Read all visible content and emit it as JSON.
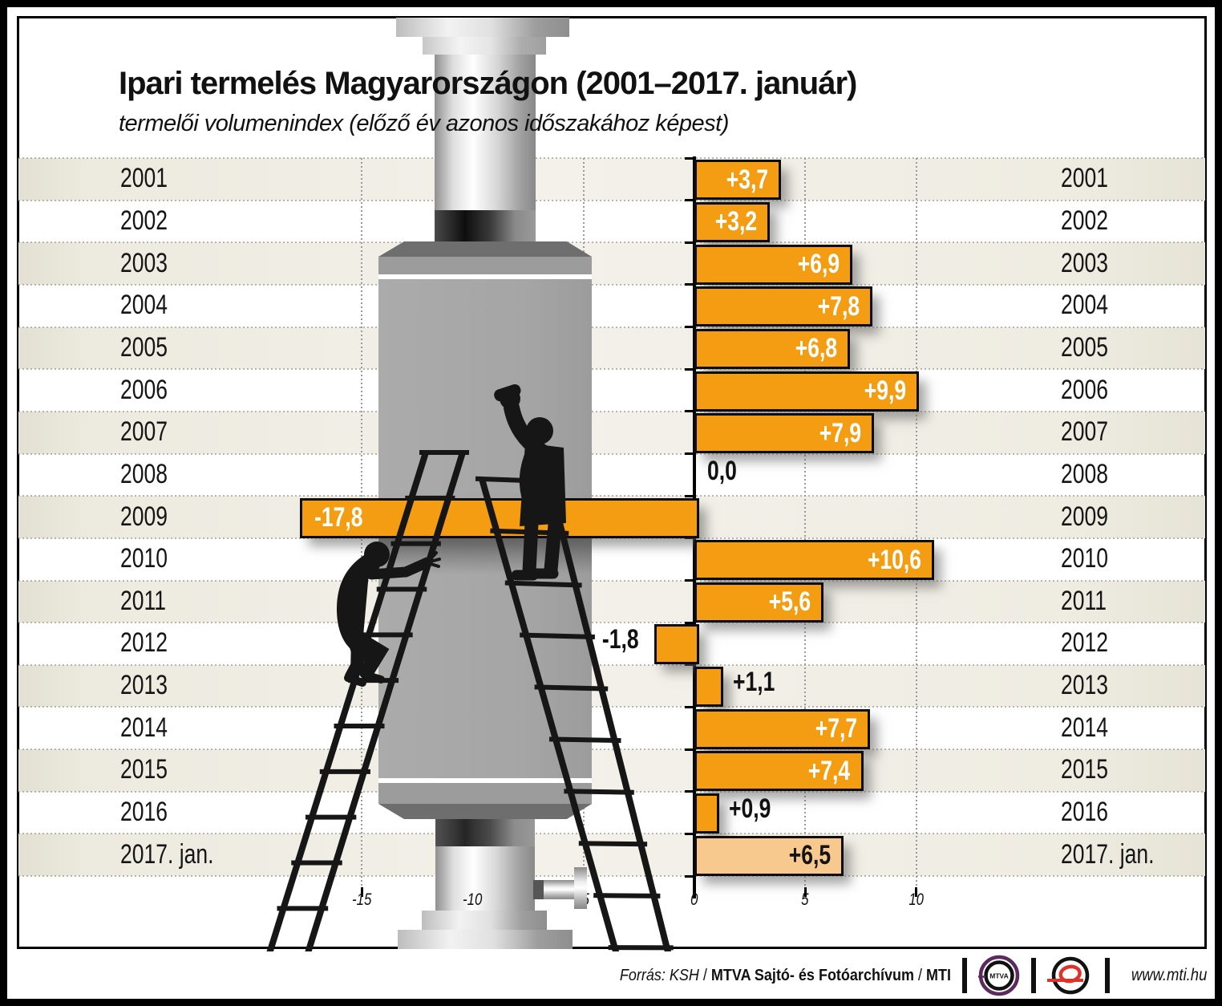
{
  "title": "Ipari termelés Magyarországon (2001–2017. január)",
  "subtitle": "termelői volumenindex (előző év azonos időszakához képest)",
  "chart_data": {
    "type": "bar",
    "orientation": "horizontal",
    "categories": [
      "2001",
      "2002",
      "2003",
      "2004",
      "2005",
      "2006",
      "2007",
      "2008",
      "2009",
      "2010",
      "2011",
      "2012",
      "2013",
      "2014",
      "2015",
      "2016",
      "2017. jan."
    ],
    "values": [
      3.7,
      3.2,
      6.9,
      7.8,
      6.8,
      9.9,
      7.9,
      0.0,
      -17.8,
      10.6,
      5.6,
      -1.8,
      1.1,
      7.7,
      7.4,
      0.9,
      6.5
    ],
    "value_labels": [
      "+3,7",
      "+3,2",
      "+6,9",
      "+7,8",
      "+6,8",
      "+9,9",
      "+7,9",
      "0,0",
      "-17,8",
      "+10,6",
      "+5,6",
      "-1,8",
      "+1,1",
      "+7,7",
      "+7,4",
      "+0,9",
      "+6,5"
    ],
    "x_ticks": [
      -15,
      -10,
      -5,
      0,
      5,
      10
    ],
    "x_tick_labels": [
      "-15",
      "-10",
      "-5",
      "0",
      "5",
      "10"
    ],
    "xlim": [
      -20,
      13
    ],
    "grid": true,
    "legend": "none",
    "bar_color": "#F49D13",
    "last_bar_color": "#F8C98E",
    "bar_border_color": "#0d0d0d",
    "stripe_color": "#EDEADF",
    "unit": "percent change vs same period of previous year"
  },
  "footer": {
    "source_italic": "Forrás: KSH",
    "sep1": " / ",
    "source_bold": "MTVA Sajtó- és Fotóarchívum",
    "sep2": " / ",
    "source_bold2": "MTI",
    "website": "www.mti.hu",
    "mtva_logo_text": "MTVA"
  }
}
